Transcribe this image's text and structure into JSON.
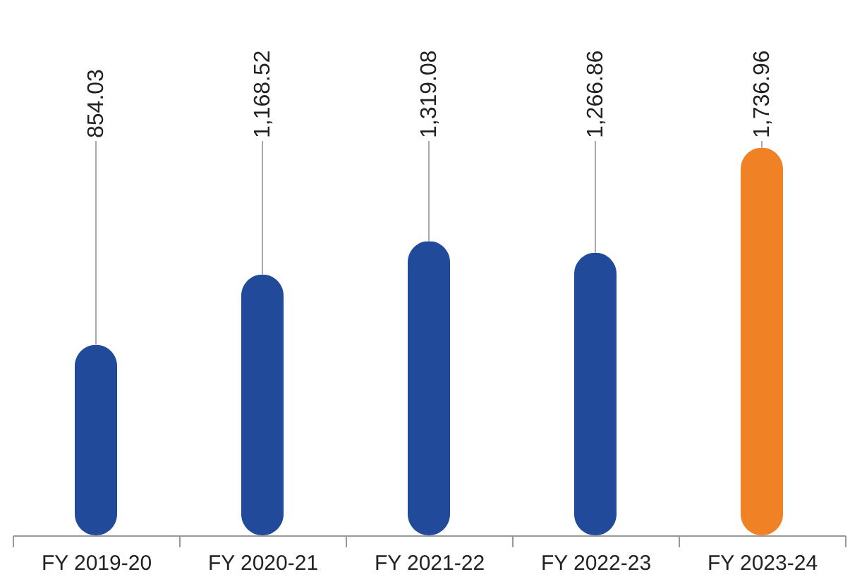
{
  "chart_data": {
    "type": "bar",
    "categories": [
      "FY 2019-20",
      "FY 2020-21",
      "FY 2021-22",
      "FY 2022-23",
      "FY 2023-24"
    ],
    "values": [
      854.03,
      1168.52,
      1319.08,
      1266.86,
      1736.96
    ],
    "colors": [
      "#214a9a",
      "#214a9a",
      "#214a9a",
      "#214a9a",
      "#f08124"
    ],
    "value_labels": [
      "854.03",
      "1,168.52",
      "1,319.08",
      "1,266.86",
      "1,736.96"
    ]
  }
}
